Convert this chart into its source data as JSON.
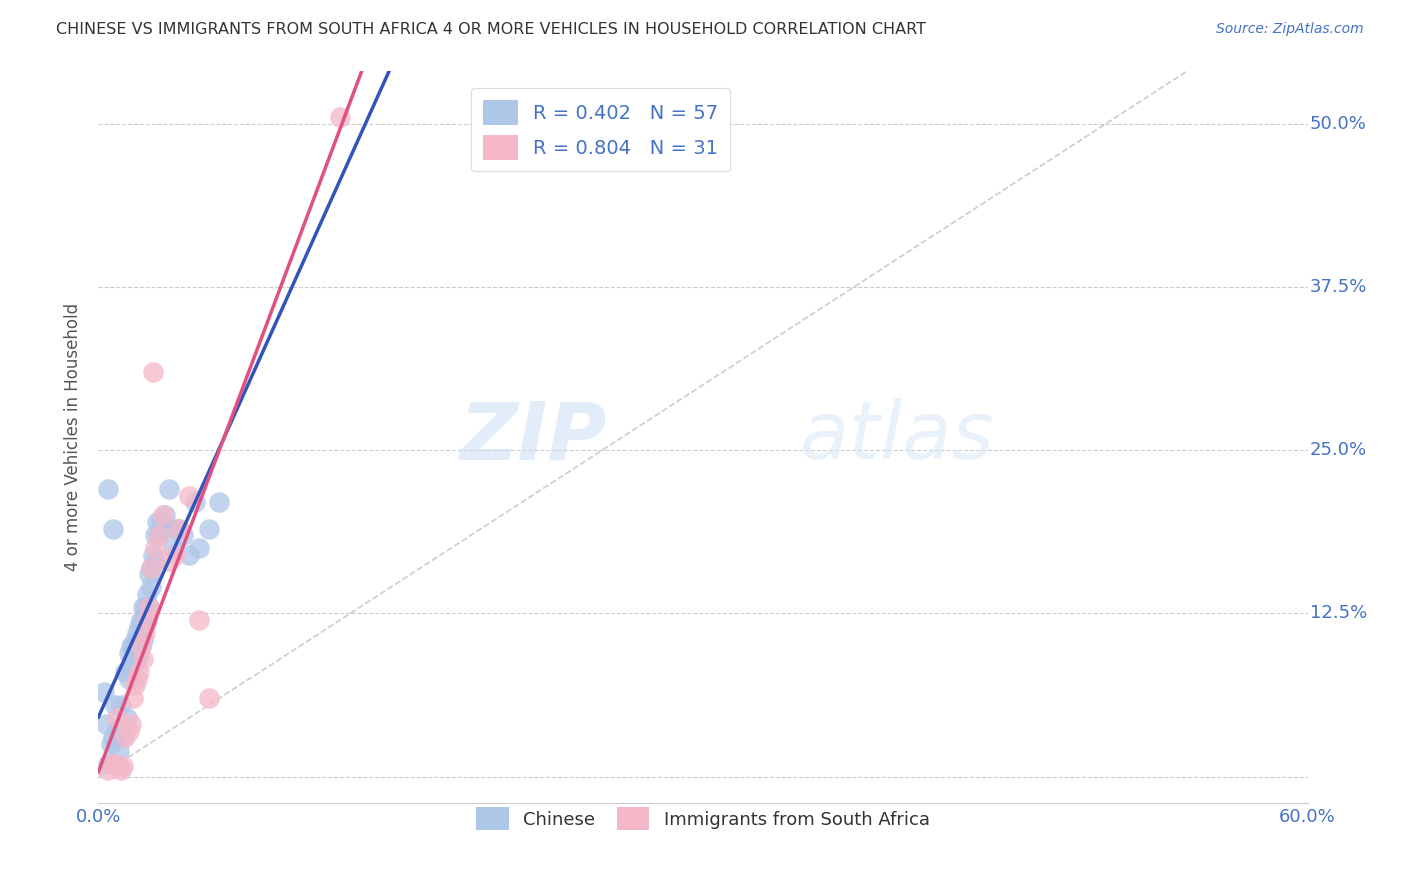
{
  "title": "CHINESE VS IMMIGRANTS FROM SOUTH AFRICA 4 OR MORE VEHICLES IN HOUSEHOLD CORRELATION CHART",
  "source": "Source: ZipAtlas.com",
  "ylabel": "4 or more Vehicles in Household",
  "xlim": [
    0.0,
    0.6
  ],
  "ylim": [
    -0.02,
    0.54
  ],
  "x_tick_positions": [
    0.0,
    0.1,
    0.2,
    0.3,
    0.4,
    0.5,
    0.6
  ],
  "x_tick_labels": [
    "0.0%",
    "",
    "",
    "",
    "",
    "",
    "60.0%"
  ],
  "y_tick_positions": [
    0.0,
    0.125,
    0.25,
    0.375,
    0.5
  ],
  "y_tick_labels": [
    "",
    "12.5%",
    "25.0%",
    "37.5%",
    "50.0%"
  ],
  "chinese_color": "#aec6e8",
  "sa_color": "#f4b8c8",
  "blue_line_color": "#3355bb",
  "pink_line_color": "#e05080",
  "diag_line_color": "#c0c0c0",
  "watermark_zip": "ZIP",
  "watermark_atlas": "atlas",
  "chinese_R": 0.402,
  "chinese_N": 57,
  "sa_R": 0.804,
  "sa_N": 31,
  "chinese_line_x0": 0.0,
  "chinese_line_y0": 0.065,
  "chinese_line_x1": 0.2,
  "chinese_line_y1": 0.195,
  "sa_line_x0": 0.0,
  "sa_line_y0": 0.0,
  "sa_line_x1": 0.55,
  "sa_line_y1": 0.52,
  "chinese_scatter_x": [
    0.003,
    0.004,
    0.005,
    0.006,
    0.007,
    0.008,
    0.009,
    0.01,
    0.011,
    0.012,
    0.013,
    0.014,
    0.015,
    0.015,
    0.016,
    0.016,
    0.017,
    0.017,
    0.018,
    0.018,
    0.019,
    0.019,
    0.02,
    0.02,
    0.021,
    0.021,
    0.022,
    0.022,
    0.022,
    0.023,
    0.023,
    0.024,
    0.024,
    0.025,
    0.025,
    0.026,
    0.026,
    0.027,
    0.028,
    0.028,
    0.029,
    0.03,
    0.031,
    0.032,
    0.033,
    0.035,
    0.037,
    0.038,
    0.04,
    0.042,
    0.045,
    0.048,
    0.05,
    0.055,
    0.06,
    0.005,
    0.007
  ],
  "chinese_scatter_y": [
    0.065,
    0.04,
    0.01,
    0.025,
    0.03,
    0.055,
    0.035,
    0.02,
    0.055,
    0.03,
    0.08,
    0.045,
    0.075,
    0.095,
    0.085,
    0.1,
    0.085,
    0.1,
    0.105,
    0.09,
    0.09,
    0.11,
    0.095,
    0.115,
    0.1,
    0.12,
    0.105,
    0.12,
    0.13,
    0.115,
    0.13,
    0.14,
    0.12,
    0.13,
    0.155,
    0.145,
    0.16,
    0.17,
    0.165,
    0.185,
    0.195,
    0.185,
    0.195,
    0.19,
    0.2,
    0.22,
    0.175,
    0.19,
    0.19,
    0.185,
    0.17,
    0.21,
    0.175,
    0.19,
    0.21,
    0.22,
    0.19
  ],
  "sa_scatter_x": [
    0.005,
    0.007,
    0.008,
    0.01,
    0.011,
    0.012,
    0.013,
    0.015,
    0.016,
    0.017,
    0.018,
    0.019,
    0.02,
    0.021,
    0.022,
    0.023,
    0.024,
    0.025,
    0.026,
    0.027,
    0.028,
    0.03,
    0.032,
    0.035,
    0.038,
    0.04,
    0.045,
    0.05,
    0.055,
    0.12,
    0.009
  ],
  "sa_scatter_y": [
    0.005,
    0.01,
    0.01,
    0.008,
    0.005,
    0.008,
    0.03,
    0.035,
    0.04,
    0.06,
    0.07,
    0.075,
    0.08,
    0.1,
    0.09,
    0.11,
    0.12,
    0.13,
    0.16,
    0.31,
    0.175,
    0.185,
    0.2,
    0.165,
    0.17,
    0.19,
    0.215,
    0.12,
    0.06,
    0.505,
    0.045
  ]
}
